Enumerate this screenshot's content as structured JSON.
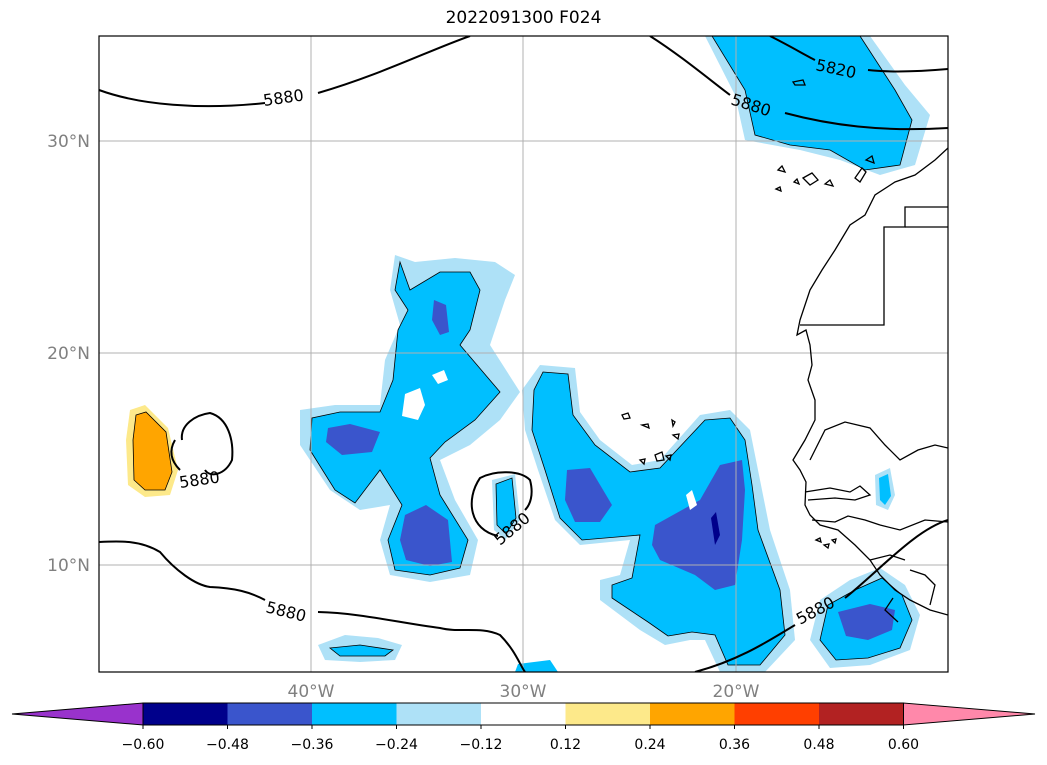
{
  "title": "2022091300 F024",
  "map": {
    "lat_labels": [
      "30°N",
      "20°N",
      "10°N"
    ],
    "lon_labels": [
      "40°W",
      "30°W",
      "20°W"
    ],
    "contour_labels": [
      "5820",
      "5880",
      "5880",
      "5880",
      "5880",
      "5880",
      "5880"
    ],
    "colors": {
      "vneg036": "#00bfff",
      "vneg024": "#aee1f7",
      "vneg048": "#3a55cc",
      "vneg060": "#00008b",
      "pos024": "#fde98a",
      "pos036": "#ffa500",
      "grid": "#b0b0b0",
      "coast": "#000000"
    }
  },
  "colorbar": {
    "colors": [
      "#9932cc",
      "#00008b",
      "#3a55cc",
      "#00bfff",
      "#aee1f7",
      "#ffffff",
      "#fde98a",
      "#ffa500",
      "#ff3f00",
      "#b22222",
      "#ff88aa"
    ],
    "tick_labels": [
      "−0.60",
      "−0.48",
      "−0.36",
      "−0.24",
      "−0.12",
      "0.12",
      "0.24",
      "0.36",
      "0.48",
      "0.60"
    ]
  }
}
